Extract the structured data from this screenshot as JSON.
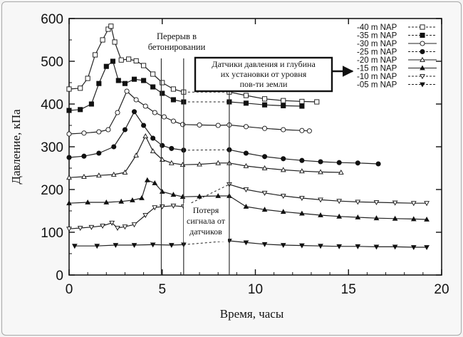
{
  "chart_data": {
    "type": "line",
    "xlabel": "Время, часы",
    "ylabel": "Давление, кПа",
    "xlim": [
      0,
      20
    ],
    "ylim": [
      0,
      600
    ],
    "xticks": [
      0,
      5,
      10,
      15,
      20
    ],
    "yticks": [
      0,
      100,
      200,
      300,
      400,
      500,
      600
    ],
    "legend_position": "top-right",
    "vlines": [
      4.95,
      6.15,
      8.6
    ],
    "annotations": {
      "break": "Перерыв в\nбетонировании",
      "sensors": "Датчики давления и глубина\nих установки от уровня\nпов-ти земли",
      "lost": "Потеря\nсигнала от\nдатчиков"
    },
    "series": [
      {
        "name": "-40 m NAP",
        "marker": "open-square",
        "lost_gap": [
          6.15,
          8.6
        ],
        "points": [
          [
            0,
            435
          ],
          [
            0.6,
            437
          ],
          [
            1,
            460
          ],
          [
            1.4,
            515
          ],
          [
            1.8,
            550
          ],
          [
            2.1,
            575
          ],
          [
            2.25,
            582
          ],
          [
            2.45,
            545
          ],
          [
            2.8,
            503
          ],
          [
            3.2,
            505
          ],
          [
            3.6,
            501
          ],
          [
            4,
            490
          ],
          [
            4.5,
            470
          ],
          [
            5,
            450
          ],
          [
            5.6,
            435
          ],
          [
            6.15,
            428
          ],
          [
            8.6,
            428
          ],
          [
            9.5,
            420
          ],
          [
            10.5,
            412
          ],
          [
            11.5,
            408
          ],
          [
            12.5,
            406
          ],
          [
            13.3,
            405
          ]
        ]
      },
      {
        "name": "-35 m NAP",
        "marker": "filled-square",
        "lost_gap": [
          6.15,
          8.6
        ],
        "points": [
          [
            0,
            385
          ],
          [
            0.6,
            387
          ],
          [
            1.2,
            400
          ],
          [
            1.6,
            448
          ],
          [
            2,
            488
          ],
          [
            2.35,
            500
          ],
          [
            2.65,
            455
          ],
          [
            3,
            448
          ],
          [
            3.5,
            458
          ],
          [
            4,
            455
          ],
          [
            4.5,
            440
          ],
          [
            5,
            425
          ],
          [
            5.6,
            410
          ],
          [
            6.15,
            405
          ],
          [
            8.6,
            405
          ],
          [
            9.5,
            402
          ],
          [
            10.5,
            398
          ],
          [
            11.5,
            396
          ],
          [
            12.5,
            395
          ]
        ]
      },
      {
        "name": "-30 m NAP",
        "marker": "open-circle",
        "points": [
          [
            0,
            330
          ],
          [
            0.8,
            332
          ],
          [
            1.6,
            335
          ],
          [
            2.1,
            340
          ],
          [
            2.6,
            380
          ],
          [
            3.1,
            430
          ],
          [
            3.6,
            410
          ],
          [
            4.1,
            395
          ],
          [
            4.6,
            380
          ],
          [
            5.1,
            370
          ],
          [
            5.6,
            360
          ],
          [
            6.1,
            352
          ],
          [
            7,
            351
          ],
          [
            8,
            350
          ],
          [
            8.6,
            351
          ],
          [
            9.5,
            347
          ],
          [
            10.5,
            343
          ],
          [
            11.5,
            340
          ],
          [
            12.5,
            338
          ],
          [
            12.9,
            337
          ]
        ]
      },
      {
        "name": "-25 m NAP",
        "marker": "filled-circle",
        "lost_gap": [
          6.15,
          8.6
        ],
        "points": [
          [
            0,
            275
          ],
          [
            0.8,
            278
          ],
          [
            1.6,
            285
          ],
          [
            2.4,
            300
          ],
          [
            3,
            340
          ],
          [
            3.5,
            382
          ],
          [
            4,
            350
          ],
          [
            4.5,
            320
          ],
          [
            5,
            303
          ],
          [
            5.5,
            296
          ],
          [
            6.15,
            292
          ],
          [
            8.6,
            293
          ],
          [
            9.5,
            285
          ],
          [
            10.5,
            277
          ],
          [
            11.5,
            272
          ],
          [
            12.5,
            268
          ],
          [
            13.5,
            265
          ],
          [
            14.5,
            263
          ],
          [
            15.5,
            262
          ],
          [
            16.6,
            260
          ]
        ]
      },
      {
        "name": "-20 m NAP",
        "marker": "open-triangle",
        "points": [
          [
            0,
            228
          ],
          [
            0.8,
            230
          ],
          [
            1.6,
            233
          ],
          [
            2.4,
            235
          ],
          [
            3,
            240
          ],
          [
            3.6,
            280
          ],
          [
            4.1,
            325
          ],
          [
            4.5,
            290
          ],
          [
            5,
            270
          ],
          [
            5.5,
            262
          ],
          [
            6.1,
            258
          ],
          [
            7,
            259
          ],
          [
            8,
            262
          ],
          [
            8.6,
            262
          ],
          [
            9.5,
            255
          ],
          [
            10.5,
            250
          ],
          [
            11.5,
            246
          ],
          [
            12.5,
            243
          ],
          [
            13.5,
            241
          ],
          [
            14.6,
            240
          ]
        ]
      },
      {
        "name": "-15 m NAP",
        "marker": "filled-triangle",
        "points": [
          [
            0,
            168
          ],
          [
            1,
            170
          ],
          [
            2,
            170
          ],
          [
            2.8,
            172
          ],
          [
            3.4,
            175
          ],
          [
            3.9,
            180
          ],
          [
            4.2,
            222
          ],
          [
            4.6,
            215
          ],
          [
            5,
            195
          ],
          [
            5.6,
            188
          ],
          [
            6.1,
            183
          ],
          [
            7,
            184
          ],
          [
            8,
            185
          ],
          [
            8.6,
            185
          ],
          [
            9.5,
            160
          ],
          [
            10.5,
            153
          ],
          [
            11.5,
            148
          ],
          [
            12.5,
            144
          ],
          [
            13.5,
            140
          ],
          [
            14.5,
            137
          ],
          [
            15.5,
            135
          ],
          [
            16.5,
            133
          ],
          [
            17.5,
            132
          ],
          [
            18.5,
            131
          ],
          [
            19.2,
            130
          ]
        ]
      },
      {
        "name": "-10 m NAP",
        "marker": "open-inverted-triangle",
        "lost_gap": [
          6.15,
          8.6
        ],
        "points": [
          [
            0,
            108
          ],
          [
            0.6,
            110
          ],
          [
            1.2,
            112
          ],
          [
            1.8,
            115
          ],
          [
            2.3,
            122
          ],
          [
            2.6,
            110
          ],
          [
            3,
            113
          ],
          [
            3.5,
            118
          ],
          [
            4.1,
            140
          ],
          [
            4.6,
            158
          ],
          [
            5,
            160
          ],
          [
            5.6,
            162
          ],
          [
            6.15,
            160
          ],
          [
            8.6,
            212
          ],
          [
            9.5,
            200
          ],
          [
            10.5,
            192
          ],
          [
            11.5,
            185
          ],
          [
            12.5,
            180
          ],
          [
            13.5,
            176
          ],
          [
            14.5,
            173
          ],
          [
            15.5,
            171
          ],
          [
            16.5,
            170
          ],
          [
            17.5,
            169
          ],
          [
            18.5,
            168
          ],
          [
            19.2,
            168
          ]
        ]
      },
      {
        "name": "-05 m NAP",
        "marker": "filled-inverted-triangle",
        "lost_gap": [
          6.15,
          8.6
        ],
        "points": [
          [
            0.3,
            68
          ],
          [
            1.5,
            68
          ],
          [
            2.5,
            70
          ],
          [
            3.5,
            70
          ],
          [
            4.5,
            71
          ],
          [
            5.5,
            70
          ],
          [
            6.15,
            71
          ],
          [
            8.6,
            80
          ],
          [
            9.5,
            76
          ],
          [
            10.5,
            72
          ],
          [
            11.5,
            70
          ],
          [
            12.5,
            69
          ],
          [
            13.5,
            68
          ],
          [
            14.5,
            67
          ],
          [
            15.5,
            67
          ],
          [
            16.5,
            66
          ],
          [
            17.5,
            66
          ],
          [
            18.5,
            65
          ],
          [
            19.2,
            65
          ]
        ]
      }
    ]
  }
}
